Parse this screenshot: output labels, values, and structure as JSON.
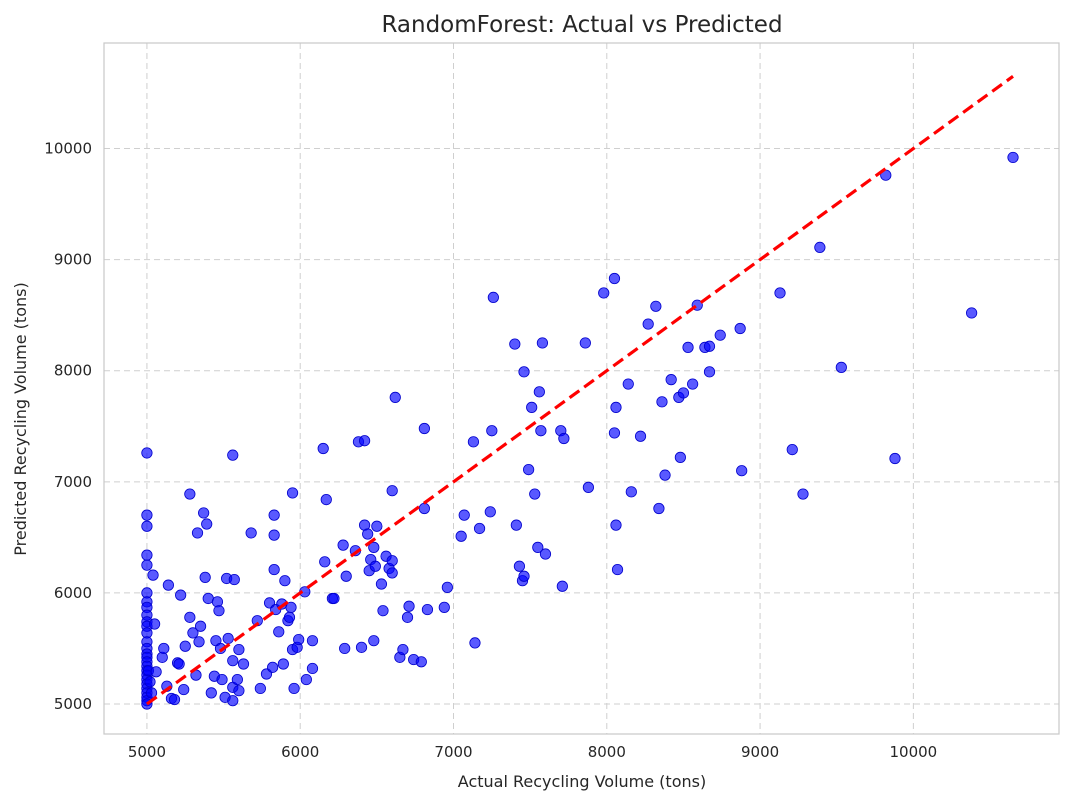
{
  "chart_data": {
    "type": "scatter",
    "title": "RandomForest: Actual vs Predicted",
    "xlabel": "Actual Recycling Volume (tons)",
    "ylabel": "Predicted Recycling Volume (tons)",
    "xlim": [
      4720,
      10950
    ],
    "ylim": [
      4730,
      10950
    ],
    "xticks": [
      5000,
      6000,
      7000,
      8000,
      9000,
      10000
    ],
    "yticks": [
      5000,
      6000,
      7000,
      8000,
      9000,
      10000
    ],
    "xtick_labels": [
      "5000",
      "6000",
      "7000",
      "8000",
      "9000",
      "10000"
    ],
    "ytick_labels": [
      "5000",
      "6000",
      "7000",
      "8000",
      "9000",
      "10000"
    ],
    "grid": true,
    "point_color": "#0000ff",
    "point_alpha": 0.65,
    "reference_line": {
      "style": "dashed",
      "color": "#ff0000",
      "from": [
        5000,
        5000
      ],
      "to": [
        10650,
        10650
      ]
    },
    "series": [
      {
        "points": [
          [
            5000,
            7260
          ],
          [
            5000,
            6700
          ],
          [
            5000,
            6600
          ],
          [
            5000,
            6340
          ],
          [
            5000,
            6250
          ],
          [
            5000,
            6000
          ],
          [
            5000,
            5920
          ],
          [
            5000,
            5870
          ],
          [
            5000,
            5800
          ],
          [
            5000,
            5740
          ],
          [
            5000,
            5700
          ],
          [
            5000,
            5640
          ],
          [
            5000,
            5560
          ],
          [
            5000,
            5500
          ],
          [
            5000,
            5450
          ],
          [
            5000,
            5420
          ],
          [
            5000,
            5380
          ],
          [
            5000,
            5340
          ],
          [
            5000,
            5300
          ],
          [
            5000,
            5260
          ],
          [
            5000,
            5220
          ],
          [
            5000,
            5180
          ],
          [
            5000,
            5140
          ],
          [
            5000,
            5100
          ],
          [
            5000,
            5060
          ],
          [
            5000,
            5030
          ],
          [
            5000,
            5000
          ],
          [
            5010,
            5300
          ],
          [
            5020,
            5200
          ],
          [
            5030,
            5100
          ],
          [
            5040,
            6160
          ],
          [
            5050,
            5720
          ],
          [
            5060,
            5290
          ],
          [
            5100,
            5420
          ],
          [
            5110,
            5500
          ],
          [
            5130,
            5160
          ],
          [
            5140,
            6070
          ],
          [
            5160,
            5050
          ],
          [
            5180,
            5040
          ],
          [
            5200,
            5370
          ],
          [
            5210,
            5360
          ],
          [
            5220,
            5980
          ],
          [
            5240,
            5130
          ],
          [
            5250,
            5520
          ],
          [
            5280,
            6890
          ],
          [
            5280,
            5780
          ],
          [
            5300,
            5640
          ],
          [
            5320,
            5260
          ],
          [
            5330,
            6540
          ],
          [
            5340,
            5560
          ],
          [
            5350,
            5700
          ],
          [
            5370,
            6720
          ],
          [
            5380,
            6140
          ],
          [
            5390,
            6620
          ],
          [
            5400,
            5950
          ],
          [
            5420,
            5100
          ],
          [
            5440,
            5250
          ],
          [
            5450,
            5570
          ],
          [
            5460,
            5920
          ],
          [
            5470,
            5840
          ],
          [
            5480,
            5500
          ],
          [
            5490,
            5220
          ],
          [
            5510,
            5060
          ],
          [
            5520,
            6130
          ],
          [
            5530,
            5590
          ],
          [
            5560,
            5390
          ],
          [
            5560,
            5150
          ],
          [
            5560,
            5030
          ],
          [
            5560,
            7240
          ],
          [
            5570,
            6120
          ],
          [
            5590,
            5220
          ],
          [
            5600,
            5120
          ],
          [
            5600,
            5490
          ],
          [
            5630,
            5360
          ],
          [
            5680,
            6540
          ],
          [
            5720,
            5750
          ],
          [
            5740,
            5140
          ],
          [
            5780,
            5270
          ],
          [
            5800,
            5910
          ],
          [
            5820,
            5330
          ],
          [
            5830,
            6700
          ],
          [
            5830,
            6210
          ],
          [
            5830,
            6520
          ],
          [
            5840,
            5850
          ],
          [
            5860,
            5650
          ],
          [
            5880,
            5900
          ],
          [
            5890,
            5360
          ],
          [
            5900,
            6110
          ],
          [
            5920,
            5750
          ],
          [
            5930,
            5780
          ],
          [
            5940,
            5870
          ],
          [
            5950,
            6900
          ],
          [
            5950,
            5490
          ],
          [
            5960,
            5140
          ],
          [
            5980,
            5510
          ],
          [
            5990,
            5580
          ],
          [
            6030,
            6010
          ],
          [
            6040,
            5220
          ],
          [
            6080,
            5320
          ],
          [
            6080,
            5570
          ],
          [
            6150,
            7300
          ],
          [
            6160,
            6280
          ],
          [
            6170,
            6840
          ],
          [
            6210,
            5950
          ],
          [
            6220,
            5950
          ],
          [
            6280,
            6430
          ],
          [
            6290,
            5500
          ],
          [
            6300,
            6150
          ],
          [
            6360,
            6380
          ],
          [
            6380,
            7360
          ],
          [
            6400,
            5510
          ],
          [
            6420,
            7370
          ],
          [
            6420,
            6610
          ],
          [
            6440,
            6530
          ],
          [
            6450,
            6200
          ],
          [
            6460,
            6300
          ],
          [
            6480,
            6410
          ],
          [
            6480,
            5570
          ],
          [
            6490,
            6240
          ],
          [
            6500,
            6600
          ],
          [
            6530,
            6080
          ],
          [
            6540,
            5840
          ],
          [
            6560,
            6330
          ],
          [
            6580,
            6220
          ],
          [
            6600,
            6920
          ],
          [
            6600,
            6290
          ],
          [
            6600,
            6180
          ],
          [
            6620,
            7760
          ],
          [
            6650,
            5420
          ],
          [
            6670,
            5490
          ],
          [
            6700,
            5780
          ],
          [
            6710,
            5880
          ],
          [
            6740,
            5400
          ],
          [
            6790,
            5380
          ],
          [
            6810,
            7480
          ],
          [
            6810,
            6760
          ],
          [
            6830,
            5850
          ],
          [
            6940,
            5870
          ],
          [
            6960,
            6050
          ],
          [
            7050,
            6510
          ],
          [
            7070,
            6700
          ],
          [
            7130,
            7360
          ],
          [
            7140,
            5550
          ],
          [
            7170,
            6580
          ],
          [
            7240,
            6730
          ],
          [
            7250,
            7460
          ],
          [
            7260,
            8660
          ],
          [
            7400,
            8240
          ],
          [
            7410,
            6610
          ],
          [
            7430,
            6240
          ],
          [
            7450,
            6110
          ],
          [
            7460,
            6150
          ],
          [
            7460,
            7990
          ],
          [
            7490,
            7110
          ],
          [
            7510,
            7670
          ],
          [
            7530,
            6890
          ],
          [
            7550,
            6410
          ],
          [
            7560,
            7810
          ],
          [
            7570,
            7460
          ],
          [
            7580,
            8250
          ],
          [
            7600,
            6350
          ],
          [
            7700,
            7460
          ],
          [
            7710,
            6060
          ],
          [
            7720,
            7390
          ],
          [
            7860,
            8250
          ],
          [
            7880,
            6950
          ],
          [
            7980,
            8700
          ],
          [
            8050,
            8830
          ],
          [
            8050,
            7440
          ],
          [
            8060,
            7670
          ],
          [
            8060,
            6610
          ],
          [
            8070,
            6210
          ],
          [
            8140,
            7880
          ],
          [
            8160,
            6910
          ],
          [
            8220,
            7410
          ],
          [
            8270,
            8420
          ],
          [
            8320,
            8580
          ],
          [
            8340,
            6760
          ],
          [
            8360,
            7720
          ],
          [
            8380,
            7060
          ],
          [
            8420,
            7920
          ],
          [
            8470,
            7760
          ],
          [
            8480,
            7220
          ],
          [
            8500,
            7800
          ],
          [
            8530,
            8210
          ],
          [
            8560,
            7880
          ],
          [
            8590,
            8590
          ],
          [
            8640,
            8210
          ],
          [
            8670,
            8220
          ],
          [
            8670,
            7990
          ],
          [
            8740,
            8320
          ],
          [
            8870,
            8380
          ],
          [
            8880,
            7100
          ],
          [
            9130,
            8700
          ],
          [
            9210,
            7290
          ],
          [
            9280,
            6890
          ],
          [
            9390,
            9110
          ],
          [
            9530,
            8030
          ],
          [
            9820,
            9760
          ],
          [
            9880,
            7210
          ],
          [
            10380,
            8520
          ],
          [
            10650,
            9920
          ]
        ]
      }
    ]
  }
}
